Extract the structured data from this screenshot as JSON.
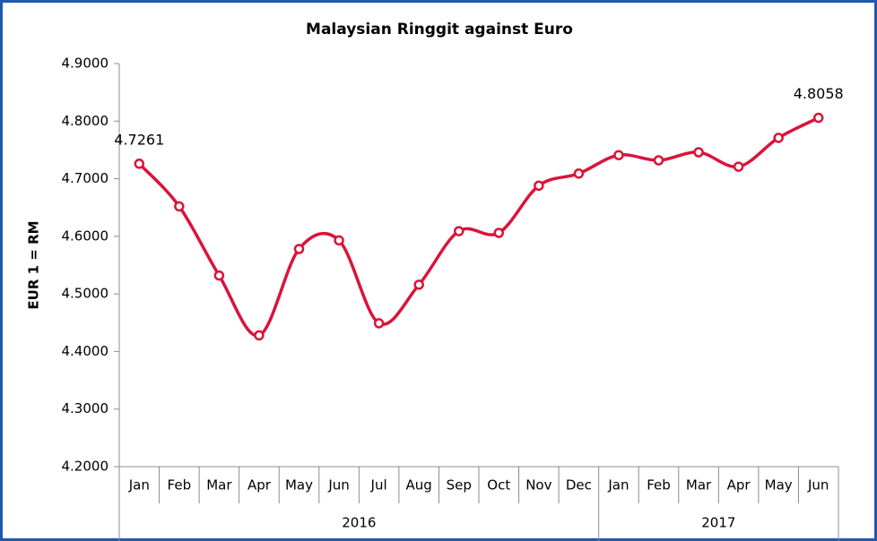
{
  "chart_data": {
    "type": "line",
    "title": "Malaysian Ringgit against Euro",
    "y_label": "EUR 1 = RM",
    "categories": [
      "Jan",
      "Feb",
      "Mar",
      "Apr",
      "May",
      "Jun",
      "Jul",
      "Aug",
      "Sep",
      "Oct",
      "Nov",
      "Dec",
      "Jan",
      "Feb",
      "Mar",
      "Apr",
      "May",
      "Jun"
    ],
    "category_groups": [
      {
        "name": "2016",
        "count": 12
      },
      {
        "name": "2017",
        "count": 6
      }
    ],
    "series": [
      {
        "name": "EUR 1 = RM",
        "color": "#d9143a",
        "values": [
          4.7261,
          4.652,
          4.532,
          4.428,
          4.578,
          4.593,
          4.449,
          4.516,
          4.609,
          4.606,
          4.688,
          4.709,
          4.741,
          4.732,
          4.746,
          4.721,
          4.771,
          4.8058
        ],
        "value_labels": [
          "4.7261",
          null,
          null,
          null,
          null,
          null,
          null,
          null,
          null,
          null,
          null,
          null,
          null,
          null,
          null,
          null,
          null,
          "4.8058"
        ]
      }
    ],
    "ylim": [
      4.2,
      4.9
    ],
    "yticks": [
      {
        "value": 4.2,
        "label": "4.2000"
      },
      {
        "value": 4.3,
        "label": "4.3000"
      },
      {
        "value": 4.4,
        "label": "4.4000"
      },
      {
        "value": 4.5,
        "label": "4.5000"
      },
      {
        "value": 4.6,
        "label": "4.6000"
      },
      {
        "value": 4.7,
        "label": "4.7000"
      },
      {
        "value": 4.8,
        "label": "4.8000"
      },
      {
        "value": 4.9,
        "label": "4.9000"
      }
    ],
    "grid": false,
    "smooth": true
  }
}
